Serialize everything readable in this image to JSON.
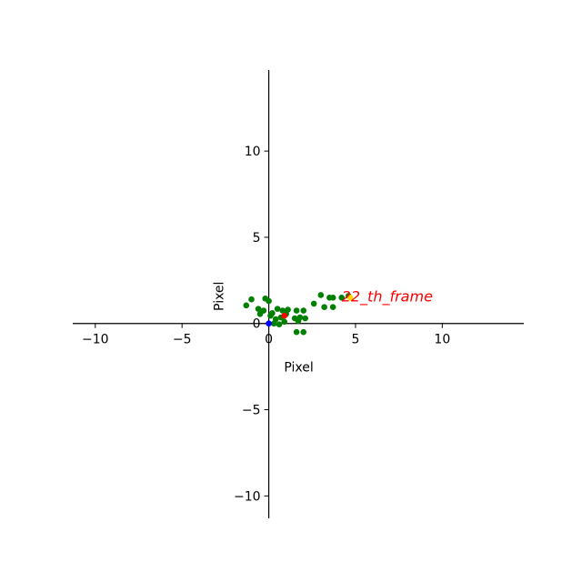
{
  "chart_data": {
    "type": "scatter",
    "xlabel": "Pixel",
    "ylabel": "Pixel",
    "xlim": [
      -11.3,
      14.7
    ],
    "ylim": [
      -11.3,
      14.7
    ],
    "xticks": [
      -10,
      -5,
      0,
      5,
      10
    ],
    "yticks": [
      -10,
      -5,
      0,
      5,
      10
    ],
    "grid": false,
    "annotation": {
      "text": "22_th_frame",
      "x": 4.2,
      "y": 1.55,
      "color": "#ff0000"
    },
    "series": [
      {
        "color": "#008000",
        "points": [
          [
            -1.3,
            1.05
          ],
          [
            -1.0,
            1.4
          ],
          [
            -0.6,
            0.85
          ],
          [
            -0.5,
            0.55
          ],
          [
            -0.3,
            0.75
          ],
          [
            -0.2,
            1.45
          ],
          [
            0.0,
            1.3
          ],
          [
            0.1,
            0.45
          ],
          [
            0.2,
            0.6
          ],
          [
            0.3,
            0.0
          ],
          [
            0.4,
            0.25
          ],
          [
            0.5,
            0.85
          ],
          [
            0.6,
            -0.05
          ],
          [
            0.7,
            0.35
          ],
          [
            0.8,
            0.75
          ],
          [
            0.9,
            0.1
          ],
          [
            1.0,
            0.55
          ],
          [
            1.1,
            0.8
          ],
          [
            1.5,
            0.3
          ],
          [
            1.6,
            -0.5
          ],
          [
            1.6,
            0.75
          ],
          [
            1.7,
            0.15
          ],
          [
            1.8,
            0.35
          ],
          [
            2.0,
            -0.5
          ],
          [
            2.0,
            0.75
          ],
          [
            2.1,
            0.3
          ],
          [
            2.6,
            1.15
          ],
          [
            3.0,
            1.65
          ],
          [
            3.2,
            0.95
          ],
          [
            3.5,
            1.5
          ],
          [
            3.7,
            1.5
          ],
          [
            3.7,
            0.95
          ],
          [
            4.2,
            1.5
          ],
          [
            4.6,
            1.6
          ]
        ]
      },
      {
        "color": "#ffd700",
        "points": [
          [
            4.7,
            1.5
          ]
        ]
      },
      {
        "color": "#0000ff",
        "points": [
          [
            0.0,
            0.0
          ]
        ]
      },
      {
        "color": "#ff0000",
        "points": [
          [
            0.9,
            0.45
          ]
        ]
      }
    ]
  }
}
